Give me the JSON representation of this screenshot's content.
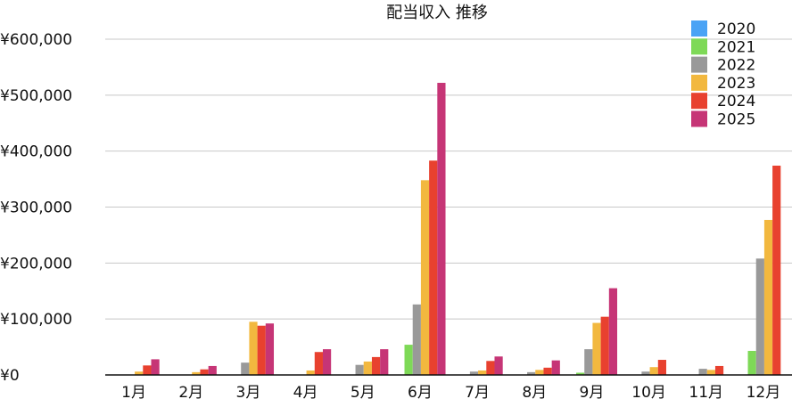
{
  "chart_data": {
    "type": "bar",
    "title": "配当収入 推移",
    "xlabel": "",
    "ylabel": "",
    "categories": [
      "1月",
      "2月",
      "3月",
      "4月",
      "5月",
      "6月",
      "7月",
      "8月",
      "9月",
      "10月",
      "11月",
      "12月"
    ],
    "ylim": [
      0,
      600000
    ],
    "y_ticks": [
      0,
      100000,
      200000,
      300000,
      400000,
      500000,
      600000
    ],
    "y_tick_labels": [
      "¥0",
      "¥100,000",
      "¥200,000",
      "¥300,000",
      "¥400,000",
      "¥500,000",
      "¥600,000"
    ],
    "grid": true,
    "legend_position": "top-right",
    "series": [
      {
        "name": "2020",
        "color": "#4aa3f5",
        "values": [
          0,
          0,
          0,
          0,
          0,
          0,
          0,
          0,
          0,
          0,
          0,
          0
        ]
      },
      {
        "name": "2021",
        "color": "#7ed957",
        "values": [
          0,
          0,
          0,
          0,
          0,
          54000,
          0,
          0,
          4000,
          0,
          0,
          43000
        ]
      },
      {
        "name": "2022",
        "color": "#999999",
        "values": [
          0,
          0,
          22000,
          0,
          18000,
          126000,
          6000,
          5000,
          46000,
          6000,
          11000,
          208000
        ]
      },
      {
        "name": "2023",
        "color": "#f2b83f",
        "values": [
          6000,
          5000,
          95000,
          8000,
          24000,
          348000,
          8000,
          9000,
          93000,
          14000,
          9000,
          277000
        ]
      },
      {
        "name": "2024",
        "color": "#e8412f",
        "values": [
          17000,
          10000,
          88000,
          41000,
          32000,
          383000,
          25000,
          13000,
          104000,
          27000,
          16000,
          374000
        ]
      },
      {
        "name": "2025",
        "color": "#c63576",
        "values": [
          28000,
          16000,
          92000,
          46000,
          46000,
          522000,
          33000,
          26000,
          155000,
          0,
          0,
          0
        ]
      }
    ]
  }
}
